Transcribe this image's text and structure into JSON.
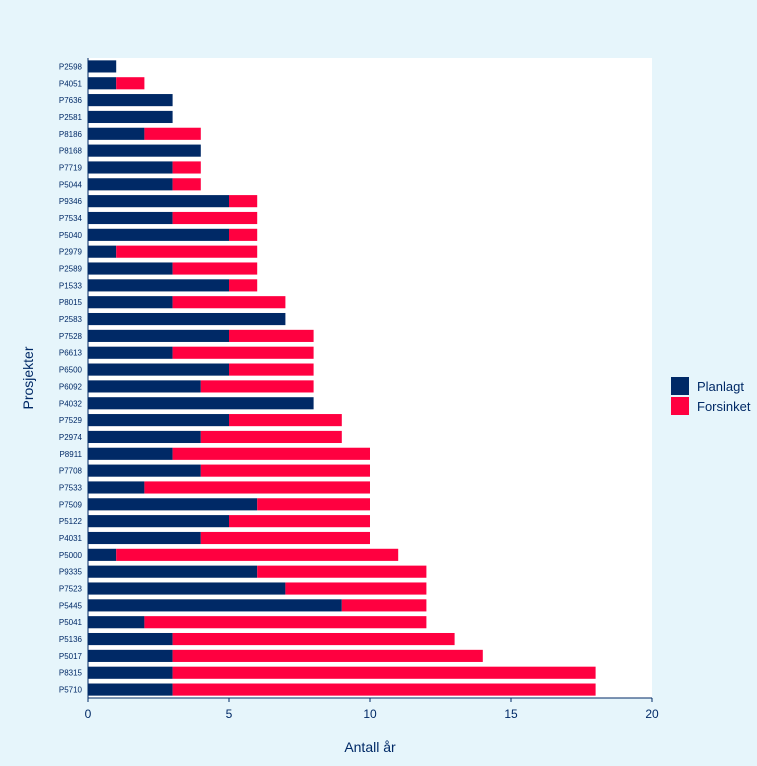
{
  "chart_data": {
    "type": "bar",
    "orientation": "horizontal",
    "stacked": true,
    "title": "",
    "xlabel": "Antall år",
    "ylabel": "Prosjekter",
    "xlim": [
      0,
      20
    ],
    "xticks": [
      0,
      5,
      10,
      15,
      20
    ],
    "grid": false,
    "legend_position": "right",
    "categories": [
      "P2598",
      "P4051",
      "P7636",
      "P2581",
      "P8186",
      "P8168",
      "P7719",
      "P5044",
      "P9346",
      "P7534",
      "P5040",
      "P2979",
      "P2589",
      "P1533",
      "P8015",
      "P2583",
      "P7528",
      "P6613",
      "P6500",
      "P6092",
      "P4032",
      "P7529",
      "P2974",
      "P8911",
      "P7708",
      "P7533",
      "P7509",
      "P5122",
      "P4031",
      "P5000",
      "P9335",
      "P7523",
      "P5445",
      "P5041",
      "P5136",
      "P5017",
      "P8315",
      "P5710"
    ],
    "series": [
      {
        "name": "Planlagt",
        "color": "#002966",
        "values": [
          1,
          1,
          3,
          3,
          2,
          4,
          3,
          3,
          5,
          3,
          5,
          1,
          3,
          5,
          3,
          7,
          5,
          3,
          5,
          4,
          8,
          5,
          4,
          3,
          4,
          2,
          6,
          5,
          4,
          1,
          6,
          7,
          9,
          2,
          3,
          3,
          3,
          3
        ]
      },
      {
        "name": "Forsinket",
        "color": "#ff0040",
        "values": [
          0,
          1,
          0,
          0,
          2,
          0,
          1,
          1,
          1,
          3,
          1,
          5,
          3,
          1,
          4,
          0,
          3,
          5,
          3,
          4,
          0,
          4,
          5,
          7,
          6,
          8,
          4,
          5,
          6,
          10,
          6,
          5,
          3,
          10,
          10,
          11,
          15,
          15
        ]
      }
    ]
  },
  "colors": {
    "background": "#e6f5fb",
    "plot_background": "#ffffff",
    "axis": "#002966",
    "text": "#002966"
  }
}
